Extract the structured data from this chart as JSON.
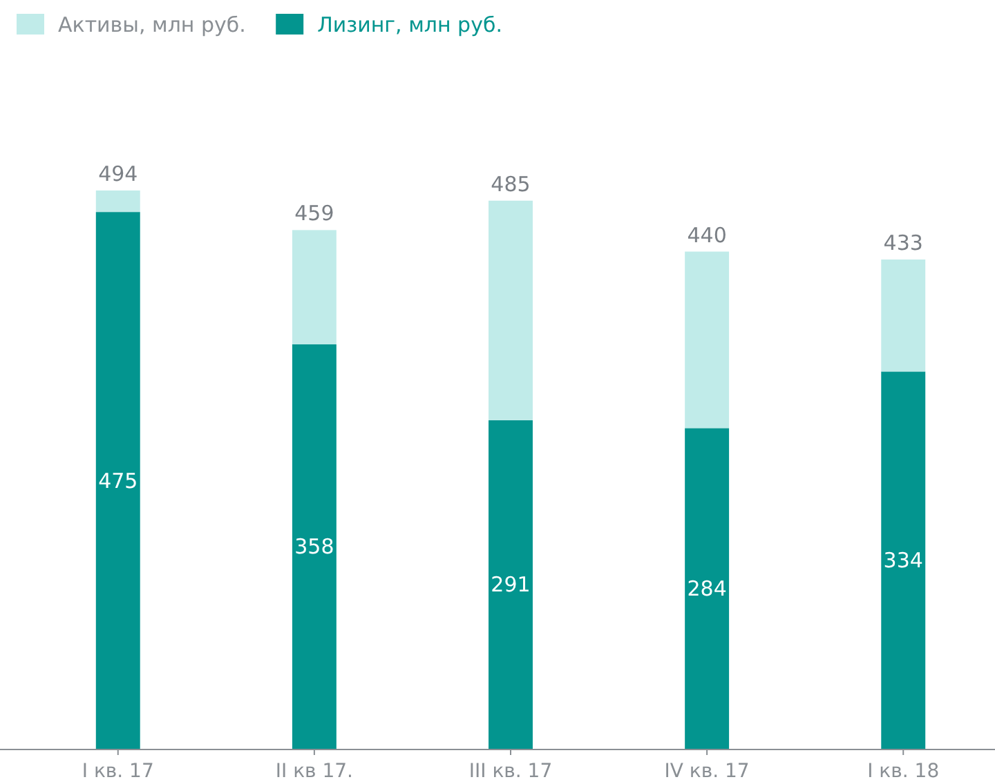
{
  "chart_data": {
    "type": "bar",
    "stacked": true,
    "categories": [
      "I кв. 17",
      "II кв 17.",
      "III кв. 17",
      "IV кв. 17",
      "I кв. 18"
    ],
    "series": [
      {
        "name": "Лизинг, млн руб.",
        "color": "#03958f",
        "values": [
          475,
          358,
          291,
          284,
          334
        ],
        "value_labels": [
          "475",
          "358",
          "291",
          "284",
          "334"
        ]
      },
      {
        "name": "Активы, млн руб.",
        "color": "#c0ebe9",
        "values": [
          19,
          101,
          194,
          156,
          99
        ]
      }
    ],
    "totals": [
      "494",
      "459",
      "485",
      "440",
      "433"
    ],
    "tick_labels": "x",
    "legend": "top left"
  }
}
